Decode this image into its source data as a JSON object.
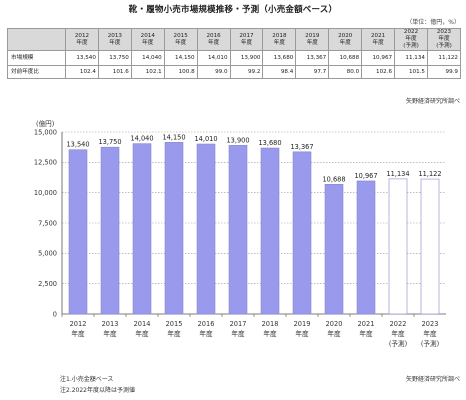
{
  "title": "靴・履物小売市場規模推移・予測（小売金額ベース）",
  "unit_note": "（単位：億円，%）",
  "table": {
    "years": [
      "2012",
      "2013",
      "2014",
      "2015",
      "2016",
      "2017",
      "2018",
      "2019",
      "2020",
      "2021",
      "2022",
      "2023"
    ],
    "suffixes": [
      "年度",
      "年度",
      "年度",
      "年度",
      "年度",
      "年度",
      "年度",
      "年度",
      "年度",
      "年度",
      "年度",
      "年度"
    ],
    "forecast_marks": [
      "",
      "",
      "",
      "",
      "",
      "",
      "",
      "",
      "",
      "",
      "(予測)",
      "(予測)"
    ],
    "rows": [
      {
        "label": "市場規模",
        "values": [
          "13,540",
          "13,750",
          "14,040",
          "14,150",
          "14,010",
          "13,900",
          "13,680",
          "13,367",
          "10,688",
          "10,967",
          "11,134",
          "11,122"
        ]
      },
      {
        "label": "対前年度比",
        "values": [
          "102.4",
          "101.6",
          "102.1",
          "100.8",
          "99.0",
          "99.2",
          "98.4",
          "97.7",
          "80.0",
          "102.6",
          "101.5",
          "99.9"
        ]
      }
    ]
  },
  "source_top": "矢野経済研究所調べ",
  "notes": [
    "注1.小売金額ベース",
    "注2.2022年度以降は予測値"
  ],
  "source_bottom": "矢野経済研究所調べ",
  "colors": {
    "bar": "#9999ee",
    "forecast_bar": "#ffffff",
    "bar_stroke": "#8888cc",
    "grid": "#999999"
  },
  "chart_data": {
    "type": "bar",
    "ylabel": "(億円)",
    "ylim": [
      0,
      15000
    ],
    "yticks": [
      0,
      2500,
      5000,
      7500,
      10000,
      12500,
      15000
    ],
    "ytick_labels": [
      "0",
      "2,500",
      "5,000",
      "7,500",
      "10,000",
      "12,500",
      "15,000"
    ],
    "grid": "horizontal dotted",
    "categories": [
      "2012年度",
      "2013年度",
      "2014年度",
      "2015年度",
      "2016年度",
      "2017年度",
      "2018年度",
      "2019年度",
      "2020年度",
      "2021年度",
      "2022年度(予測)",
      "2023年度(予測)"
    ],
    "x_line1": [
      "2012",
      "2013",
      "2014",
      "2015",
      "2016",
      "2017",
      "2018",
      "2019",
      "2020",
      "2021",
      "2022",
      "2023"
    ],
    "x_line2": [
      "年度",
      "年度",
      "年度",
      "年度",
      "年度",
      "年度",
      "年度",
      "年度",
      "年度",
      "年度",
      "年度",
      "年度"
    ],
    "x_line3": [
      "",
      "",
      "",
      "",
      "",
      "",
      "",
      "",
      "",
      "",
      "(予測)",
      "(予測)"
    ],
    "values": [
      13540,
      13750,
      14040,
      14150,
      14010,
      13900,
      13680,
      13367,
      10688,
      10967,
      11134,
      11122
    ],
    "value_labels": [
      "13,540",
      "13,750",
      "14,040",
      "14,150",
      "14,010",
      "13,900",
      "13,680",
      "13,367",
      "10,688",
      "10,967",
      "11,134",
      "11,122"
    ],
    "forecast": [
      false,
      false,
      false,
      false,
      false,
      false,
      false,
      false,
      false,
      false,
      true,
      true
    ]
  }
}
